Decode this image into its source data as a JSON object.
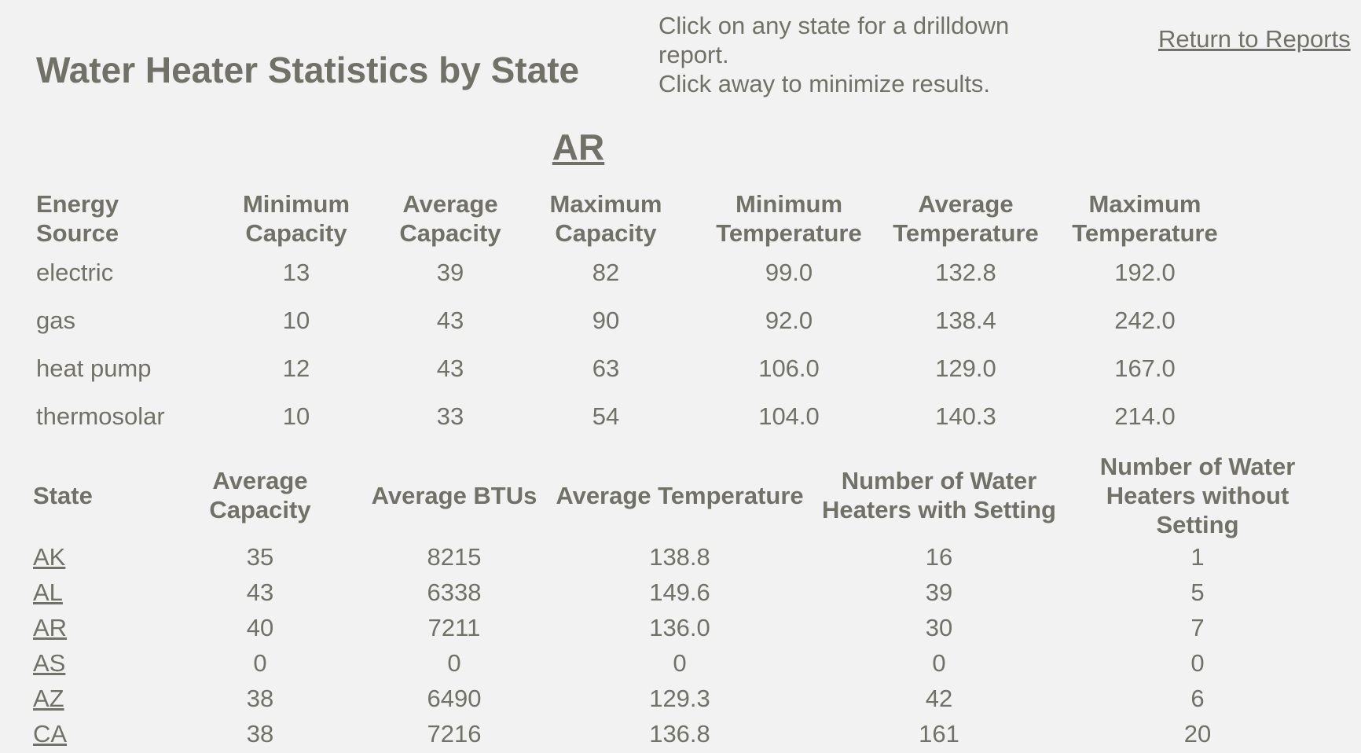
{
  "header": {
    "title": "Water Heater Statistics by State",
    "instructions": [
      "Click on any state for a drilldown report.",
      "Click away to minimize results."
    ],
    "return_link": "Return to Reports"
  },
  "drilldown": {
    "state": "AR",
    "columns": [
      "Energy Source",
      "Minimum Capacity",
      "Average Capacity",
      "Maximum Capacity",
      "Minimum Temperature",
      "Average Temperature",
      "Maximum Temperature"
    ],
    "rows": [
      [
        "electric",
        "13",
        "39",
        "82",
        "99.0",
        "132.8",
        "192.0"
      ],
      [
        "gas",
        "10",
        "43",
        "90",
        "92.0",
        "138.4",
        "242.0"
      ],
      [
        "heat pump",
        "12",
        "43",
        "63",
        "106.0",
        "129.0",
        "167.0"
      ],
      [
        "thermosolar",
        "10",
        "33",
        "54",
        "104.0",
        "140.3",
        "214.0"
      ]
    ]
  },
  "states_table": {
    "columns": [
      "State",
      "Average Capacity",
      "Average BTUs",
      "Average Temperature",
      "Number of Water Heaters with Setting",
      "Number of Water Heaters without Setting"
    ],
    "rows": [
      [
        "AK",
        "35",
        "8215",
        "138.8",
        "16",
        "1"
      ],
      [
        "AL",
        "43",
        "6338",
        "149.6",
        "39",
        "5"
      ],
      [
        "AR",
        "40",
        "7211",
        "136.0",
        "30",
        "7"
      ],
      [
        "AS",
        "0",
        "0",
        "0",
        "0",
        "0"
      ],
      [
        "AZ",
        "38",
        "6490",
        "129.3",
        "42",
        "6"
      ],
      [
        "CA",
        "38",
        "7216",
        "136.8",
        "161",
        "20"
      ]
    ]
  },
  "colors": {
    "background": "#f2f2f2",
    "text": "#717168"
  }
}
